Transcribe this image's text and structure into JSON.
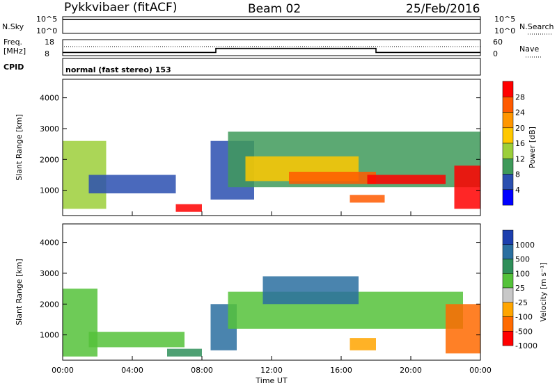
{
  "header": {
    "title": "Pykkvibaer (fitACF)",
    "beam": "Beam 02",
    "date": "25/Feb/2016"
  },
  "top_panels": {
    "nsky_label": "N.Sky",
    "nsky_ticks": [
      "10^5",
      "10^0"
    ],
    "nsky_right_ticks": [
      "10^5",
      "10^0"
    ],
    "nsearch_label": "N.Search",
    "freq_label_1": "Freq.",
    "freq_label_2": "[MHz]",
    "freq_ticks": [
      "18",
      "8"
    ],
    "nave_ticks": [
      "60",
      "0"
    ],
    "nave_label": "Nave",
    "cpid_label": "CPID",
    "cpid_text": "normal (fast stereo) 153"
  },
  "axes": {
    "ylabel": "Slant Range [km]",
    "xlabel": "Time UT",
    "x_ticks": [
      "00:00",
      "04:00",
      "08:00",
      "12:00",
      "16:00",
      "20:00",
      "00:00"
    ],
    "y_ticks": [
      "1000",
      "2000",
      "3000",
      "4000"
    ]
  },
  "colorbars": {
    "power": {
      "label": "Power [dB]",
      "ticks": [
        "28",
        "24",
        "20",
        "16",
        "12",
        "8",
        "4"
      ],
      "colors": [
        "#ff0000",
        "#ff5a00",
        "#ff9600",
        "#ffc800",
        "#9ccf3a",
        "#3f9a5a",
        "#2a4fb0",
        "#0000ff"
      ]
    },
    "velocity": {
      "label": "Velocity [m s⁻¹]",
      "ticks": [
        "1000",
        "500",
        "100",
        "25",
        "-25",
        "-100",
        "-500",
        "-1000"
      ],
      "colors": [
        "#1c3fae",
        "#2a6fa0",
        "#2f8f5a",
        "#55c23a",
        "#c8c8c8",
        "#ffa500",
        "#ff6a00",
        "#ff0000"
      ]
    }
  },
  "chart_data": [
    {
      "type": "line",
      "name": "N.Sky",
      "ylim_log": [
        0,
        5
      ],
      "x_hours": [
        0,
        24
      ],
      "level_log": 4.2
    },
    {
      "type": "line",
      "name": "Freq",
      "ylim": [
        8,
        18
      ],
      "steps": [
        {
          "start_h": 0,
          "end_h": 8.8,
          "value": 10
        },
        {
          "start_h": 8.8,
          "end_h": 18,
          "value": 12.5
        },
        {
          "start_h": 18,
          "end_h": 24,
          "value": 10
        }
      ]
    },
    {
      "type": "heatmap",
      "name": "Power [dB]",
      "x_range_hours": [
        0,
        24
      ],
      "y_range_km": [
        180,
        4600
      ],
      "regions": [
        {
          "t0": 0.0,
          "t1": 2.5,
          "r0": 400,
          "r1": 2600,
          "level": 3
        },
        {
          "t0": 1.5,
          "t1": 6.5,
          "r0": 900,
          "r1": 1500,
          "level": 1
        },
        {
          "t0": 6.5,
          "t1": 8.0,
          "r0": 300,
          "r1": 550,
          "level": 7
        },
        {
          "t0": 8.5,
          "t1": 11.0,
          "r0": 700,
          "r1": 2600,
          "level": 1
        },
        {
          "t0": 9.5,
          "t1": 24.0,
          "r0": 1100,
          "r1": 2900,
          "level": 2
        },
        {
          "t0": 10.5,
          "t1": 17.0,
          "r0": 1300,
          "r1": 2100,
          "level": 4
        },
        {
          "t0": 13.0,
          "t1": 18.0,
          "r0": 1200,
          "r1": 1600,
          "level": 6
        },
        {
          "t0": 17.5,
          "t1": 22.0,
          "r0": 1200,
          "r1": 1500,
          "level": 7
        },
        {
          "t0": 16.5,
          "t1": 18.5,
          "r0": 600,
          "r1": 850,
          "level": 6
        },
        {
          "t0": 22.5,
          "t1": 24.0,
          "r0": 400,
          "r1": 1800,
          "level": 7
        }
      ]
    },
    {
      "type": "heatmap",
      "name": "Velocity [m s-1]",
      "x_range_hours": [
        0,
        24
      ],
      "y_range_km": [
        180,
        4600
      ],
      "regions": [
        {
          "t0": 0.0,
          "t1": 2.0,
          "r0": 300,
          "r1": 2500,
          "level": 4
        },
        {
          "t0": 1.5,
          "t1": 7.0,
          "r0": 600,
          "r1": 1100,
          "level": 4
        },
        {
          "t0": 6.0,
          "t1": 8.0,
          "r0": 300,
          "r1": 550,
          "level": 5
        },
        {
          "t0": 8.5,
          "t1": 10.0,
          "r0": 500,
          "r1": 2000,
          "level": 6
        },
        {
          "t0": 9.5,
          "t1": 23.0,
          "r0": 1200,
          "r1": 2400,
          "level": 4
        },
        {
          "t0": 11.5,
          "t1": 17.0,
          "r0": 2000,
          "r1": 2900,
          "level": 6
        },
        {
          "t0": 16.5,
          "t1": 18.0,
          "r0": 500,
          "r1": 900,
          "level": 2
        },
        {
          "t0": 22.0,
          "t1": 24.0,
          "r0": 400,
          "r1": 2000,
          "level": 1
        }
      ]
    }
  ]
}
